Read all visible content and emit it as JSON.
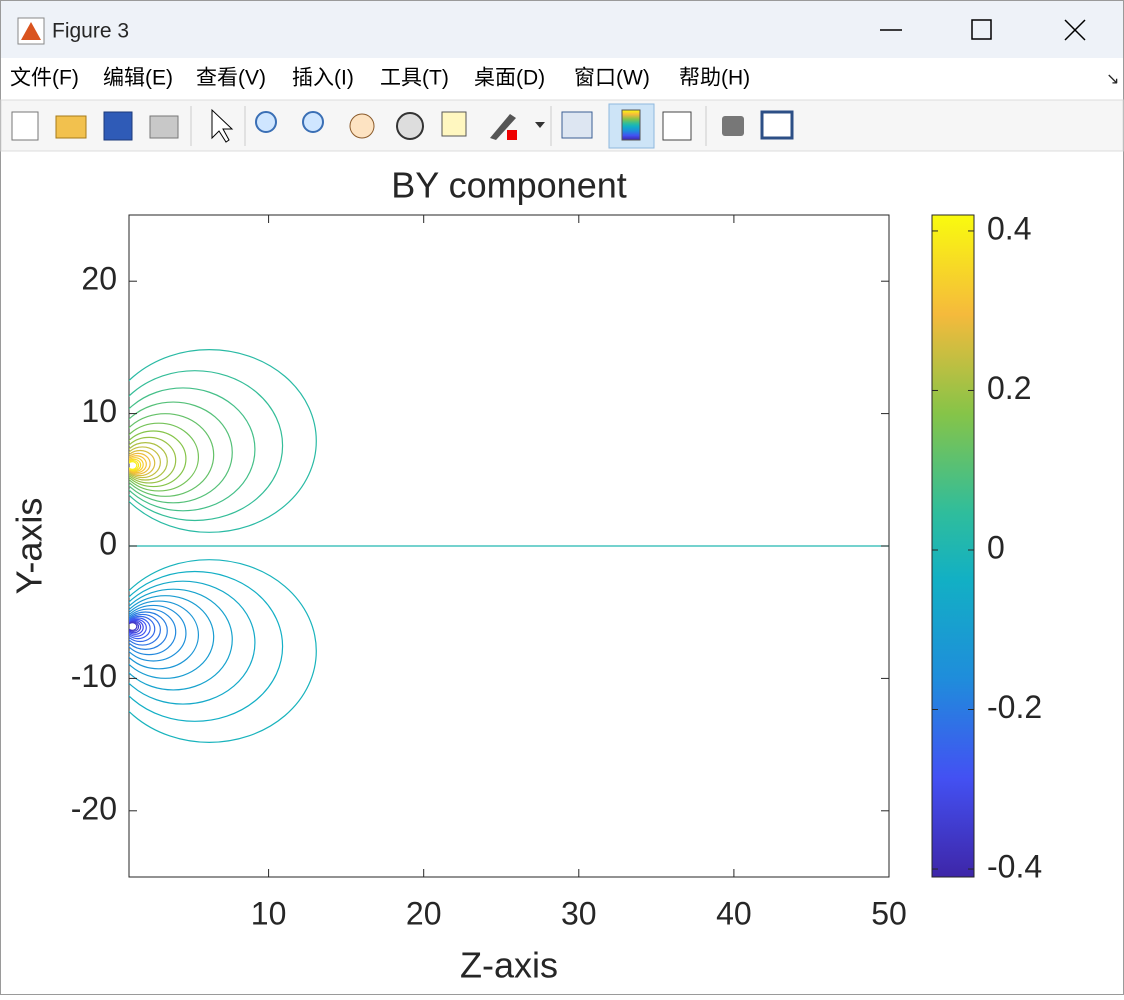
{
  "window": {
    "title": "Figure 3",
    "menu": [
      "文件(F)",
      "编辑(E)",
      "查看(V)",
      "插入(I)",
      "工具(T)",
      "桌面(D)",
      "窗口(W)",
      "帮助(H)"
    ]
  },
  "chart_data": {
    "type": "contour",
    "title": "BY component",
    "x_label": "Z-axis",
    "y_label": "Y-axis",
    "xlim": [
      1,
      50
    ],
    "xticks": [
      10,
      20,
      30,
      40,
      50
    ],
    "ylim": [
      -25,
      25
    ],
    "yticks": [
      -20,
      -10,
      0,
      10,
      20
    ],
    "colorbar": {
      "clim": [
        -0.41,
        0.42
      ],
      "ticks": [
        -0.4,
        -0.2,
        0,
        0.2,
        0.4
      ]
    }
  }
}
